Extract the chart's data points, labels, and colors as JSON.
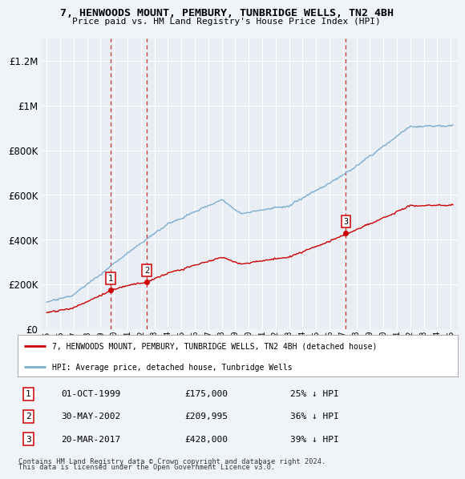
{
  "title": "7, HENWOODS MOUNT, PEMBURY, TUNBRIDGE WELLS, TN2 4BH",
  "subtitle": "Price paid vs. HM Land Registry's House Price Index (HPI)",
  "legend_label_red": "7, HENWOODS MOUNT, PEMBURY, TUNBRIDGE WELLS, TN2 4BH (detached house)",
  "legend_label_blue": "HPI: Average price, detached house, Tunbridge Wells",
  "transactions": [
    {
      "num": 1,
      "date": "01-OCT-1999",
      "price": "£175,000",
      "pct": "25% ↓ HPI",
      "year": 1999.75,
      "value": 175000
    },
    {
      "num": 2,
      "date": "30-MAY-2002",
      "price": "£209,995",
      "pct": "36% ↓ HPI",
      "year": 2002.42,
      "value": 209995
    },
    {
      "num": 3,
      "date": "20-MAR-2017",
      "price": "£428,000",
      "pct": "39% ↓ HPI",
      "year": 2017.22,
      "value": 428000
    }
  ],
  "footnote1": "Contains HM Land Registry data © Crown copyright and database right 2024.",
  "footnote2": "This data is licensed under the Open Government Licence v3.0.",
  "red_color": "#cc0000",
  "blue_color": "#7aadcf",
  "bg_color": "#f0f4f8",
  "plot_bg": "#e8eef4",
  "grid_color": "#ffffff",
  "ylim": [
    0,
    1300000
  ],
  "yticks": [
    0,
    200000,
    400000,
    600000,
    800000,
    1000000,
    1200000
  ],
  "xlim_start": 1994.6,
  "xlim_end": 2025.5
}
